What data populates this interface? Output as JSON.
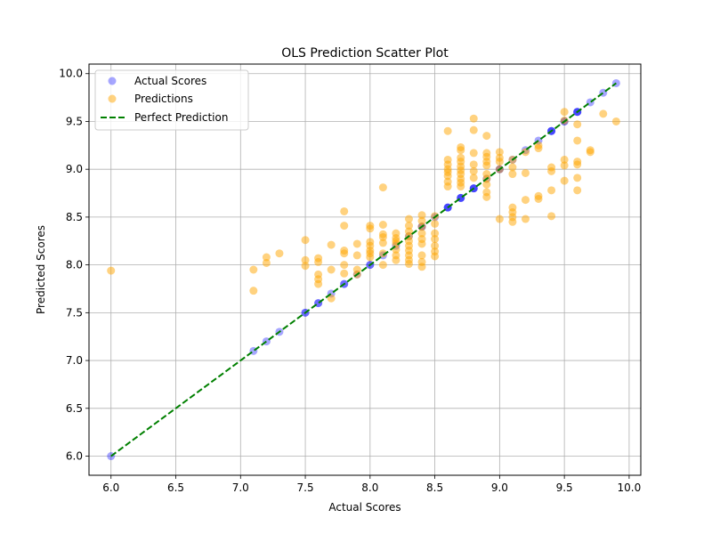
{
  "chart_data": {
    "type": "scatter",
    "title": "OLS Prediction Scatter Plot",
    "xlabel": "Actual Scores",
    "ylabel": "Predicted Scores",
    "xlim": [
      5.83,
      10.09
    ],
    "ylim": [
      5.8,
      10.1
    ],
    "xticks": [
      6.0,
      6.5,
      7.0,
      7.5,
      8.0,
      8.5,
      9.0,
      9.5,
      10.0
    ],
    "yticks": [
      6.0,
      6.5,
      7.0,
      7.5,
      8.0,
      8.5,
      9.0,
      9.5,
      10.0
    ],
    "xtick_labels": [
      "6.0",
      "6.5",
      "7.0",
      "7.5",
      "8.0",
      "8.5",
      "9.0",
      "9.5",
      "10.0"
    ],
    "ytick_labels": [
      "6.0",
      "6.5",
      "7.0",
      "7.5",
      "8.0",
      "8.5",
      "9.0",
      "9.5",
      "10.0"
    ],
    "grid": true,
    "legend_position": "top-left",
    "series": [
      {
        "name": "Actual Scores",
        "color": "#0000ff",
        "alpha": 0.35,
        "points": [
          [
            6.0,
            6.0
          ],
          [
            7.1,
            7.1
          ],
          [
            7.2,
            7.2
          ],
          [
            7.3,
            7.3
          ],
          [
            7.5,
            7.5
          ],
          [
            7.6,
            7.6
          ],
          [
            7.7,
            7.7
          ],
          [
            7.8,
            7.8
          ],
          [
            7.9,
            7.9
          ],
          [
            8.0,
            8.0
          ],
          [
            8.1,
            8.1
          ],
          [
            8.2,
            8.2
          ],
          [
            8.3,
            8.3
          ],
          [
            8.4,
            8.4
          ],
          [
            8.5,
            8.5
          ],
          [
            8.6,
            8.6
          ],
          [
            8.7,
            8.7
          ],
          [
            8.8,
            8.8
          ],
          [
            8.9,
            8.9
          ],
          [
            9.0,
            9.0
          ],
          [
            9.1,
            9.1
          ],
          [
            9.2,
            9.2
          ],
          [
            9.3,
            9.3
          ],
          [
            9.4,
            9.4
          ],
          [
            9.5,
            9.5
          ],
          [
            9.6,
            9.6
          ],
          [
            9.7,
            9.7
          ],
          [
            9.8,
            9.8
          ],
          [
            9.9,
            9.9
          ],
          [
            7.5,
            7.5
          ],
          [
            7.6,
            7.6
          ],
          [
            7.8,
            7.8
          ],
          [
            8.0,
            8.0
          ],
          [
            8.4,
            8.4
          ],
          [
            8.6,
            8.6
          ],
          [
            8.7,
            8.7
          ],
          [
            8.8,
            8.8
          ],
          [
            9.0,
            9.0
          ],
          [
            9.4,
            9.4
          ],
          [
            9.5,
            9.5
          ],
          [
            9.6,
            9.6
          ],
          [
            8.6,
            8.6
          ],
          [
            8.7,
            8.7
          ],
          [
            8.8,
            8.8
          ],
          [
            9.6,
            9.6
          ],
          [
            9.4,
            9.4
          ]
        ]
      },
      {
        "name": "Predictions",
        "color": "#ffa500",
        "alpha": 0.5,
        "points": [
          [
            6.0,
            7.94
          ],
          [
            7.1,
            7.95
          ],
          [
            7.1,
            7.73
          ],
          [
            7.2,
            8.08
          ],
          [
            7.2,
            8.02
          ],
          [
            7.3,
            8.12
          ],
          [
            7.5,
            8.26
          ],
          [
            7.5,
            8.05
          ],
          [
            7.5,
            7.99
          ],
          [
            7.6,
            8.07
          ],
          [
            7.6,
            8.03
          ],
          [
            7.6,
            7.9
          ],
          [
            7.6,
            7.85
          ],
          [
            7.6,
            7.8
          ],
          [
            7.7,
            8.21
          ],
          [
            7.7,
            7.95
          ],
          [
            7.7,
            7.65
          ],
          [
            7.8,
            8.56
          ],
          [
            7.8,
            8.41
          ],
          [
            7.8,
            8.15
          ],
          [
            7.8,
            8.12
          ],
          [
            7.8,
            8.0
          ],
          [
            7.8,
            7.91
          ],
          [
            7.9,
            8.22
          ],
          [
            7.9,
            8.1
          ],
          [
            7.9,
            7.95
          ],
          [
            7.9,
            7.9
          ],
          [
            8.0,
            8.41
          ],
          [
            8.0,
            8.38
          ],
          [
            8.0,
            8.24
          ],
          [
            8.0,
            8.2
          ],
          [
            8.0,
            8.15
          ],
          [
            8.0,
            8.12
          ],
          [
            8.0,
            8.08
          ],
          [
            8.1,
            8.81
          ],
          [
            8.1,
            8.42
          ],
          [
            8.1,
            8.32
          ],
          [
            8.1,
            8.29
          ],
          [
            8.1,
            8.23
          ],
          [
            8.1,
            8.12
          ],
          [
            8.1,
            8.0
          ],
          [
            8.2,
            8.33
          ],
          [
            8.2,
            8.28
          ],
          [
            8.2,
            8.25
          ],
          [
            8.2,
            8.22
          ],
          [
            8.2,
            8.16
          ],
          [
            8.2,
            8.1
          ],
          [
            8.2,
            8.05
          ],
          [
            8.3,
            8.48
          ],
          [
            8.3,
            8.41
          ],
          [
            8.3,
            8.35
          ],
          [
            8.3,
            8.3
          ],
          [
            8.3,
            8.25
          ],
          [
            8.3,
            8.2
          ],
          [
            8.3,
            8.15
          ],
          [
            8.3,
            8.1
          ],
          [
            8.3,
            8.05
          ],
          [
            8.3,
            8.01
          ],
          [
            8.4,
            8.52
          ],
          [
            8.4,
            8.46
          ],
          [
            8.4,
            8.4
          ],
          [
            8.4,
            8.33
          ],
          [
            8.4,
            8.27
          ],
          [
            8.4,
            8.22
          ],
          [
            8.4,
            8.1
          ],
          [
            8.4,
            8.03
          ],
          [
            8.4,
            7.98
          ],
          [
            8.5,
            8.51
          ],
          [
            8.5,
            8.43
          ],
          [
            8.5,
            8.33
          ],
          [
            8.5,
            8.27
          ],
          [
            8.5,
            8.2
          ],
          [
            8.5,
            8.14
          ],
          [
            8.5,
            8.09
          ],
          [
            8.6,
            9.4
          ],
          [
            8.6,
            9.1
          ],
          [
            8.6,
            9.05
          ],
          [
            8.6,
            9.0
          ],
          [
            8.6,
            8.97
          ],
          [
            8.6,
            8.93
          ],
          [
            8.6,
            8.87
          ],
          [
            8.6,
            8.82
          ],
          [
            8.7,
            9.23
          ],
          [
            8.7,
            9.2
          ],
          [
            8.7,
            9.12
          ],
          [
            8.7,
            9.08
          ],
          [
            8.7,
            9.03
          ],
          [
            8.7,
            8.99
          ],
          [
            8.7,
            8.95
          ],
          [
            8.7,
            8.9
          ],
          [
            8.7,
            8.86
          ],
          [
            8.7,
            8.82
          ],
          [
            8.8,
            9.53
          ],
          [
            8.8,
            9.41
          ],
          [
            8.8,
            9.17
          ],
          [
            8.8,
            9.05
          ],
          [
            8.8,
            8.98
          ],
          [
            8.8,
            8.91
          ],
          [
            8.9,
            9.35
          ],
          [
            8.9,
            9.17
          ],
          [
            8.9,
            9.13
          ],
          [
            8.9,
            9.08
          ],
          [
            8.9,
            9.04
          ],
          [
            8.9,
            8.95
          ],
          [
            8.9,
            8.9
          ],
          [
            8.9,
            8.84
          ],
          [
            8.9,
            8.76
          ],
          [
            8.9,
            8.71
          ],
          [
            9.0,
            9.18
          ],
          [
            9.0,
            9.12
          ],
          [
            9.0,
            9.08
          ],
          [
            9.0,
            9.0
          ],
          [
            9.0,
            8.48
          ],
          [
            9.1,
            9.1
          ],
          [
            9.1,
            9.02
          ],
          [
            9.1,
            8.95
          ],
          [
            9.1,
            8.6
          ],
          [
            9.1,
            8.55
          ],
          [
            9.1,
            8.5
          ],
          [
            9.1,
            8.45
          ],
          [
            9.2,
            9.18
          ],
          [
            9.2,
            8.96
          ],
          [
            9.2,
            8.68
          ],
          [
            9.2,
            8.48
          ],
          [
            9.3,
            9.25
          ],
          [
            9.3,
            9.22
          ],
          [
            9.3,
            8.72
          ],
          [
            9.3,
            8.69
          ],
          [
            9.4,
            9.02
          ],
          [
            9.4,
            8.98
          ],
          [
            9.4,
            8.78
          ],
          [
            9.4,
            8.51
          ],
          [
            9.5,
            9.6
          ],
          [
            9.5,
            9.51
          ],
          [
            9.5,
            9.1
          ],
          [
            9.5,
            9.04
          ],
          [
            9.5,
            8.88
          ],
          [
            9.6,
            9.47
          ],
          [
            9.6,
            9.3
          ],
          [
            9.6,
            9.08
          ],
          [
            9.6,
            9.05
          ],
          [
            9.6,
            8.91
          ],
          [
            9.6,
            8.78
          ],
          [
            9.7,
            9.18
          ],
          [
            9.7,
            9.2
          ],
          [
            9.8,
            9.58
          ],
          [
            9.9,
            9.5
          ]
        ]
      },
      {
        "name": "Perfect Prediction",
        "color": "#008000",
        "line_style": "dashed",
        "points": [
          [
            6.0,
            6.0
          ],
          [
            9.9,
            9.9
          ]
        ]
      }
    ]
  }
}
